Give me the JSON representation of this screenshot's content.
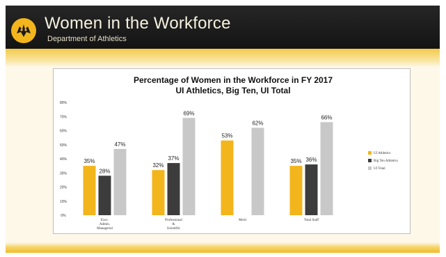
{
  "slide": {
    "title": "Women in the Workforce",
    "subtitle": "Department of Athletics"
  },
  "colors": {
    "header_bg": "#1d1d1d",
    "gold": "#f2b51c",
    "ui_athletics": "#f2b51c",
    "big_ten": "#3c3c3c",
    "ui_total": "#c8c8c8"
  },
  "chart_data": {
    "type": "bar",
    "title": "Percentage of Women in the Workforce in FY 2017",
    "subtitle": "UI Athletics, Big Ten, UI Total",
    "categories": [
      "Exec. Admin. Managerial",
      "Professional & Scientific",
      "Merit",
      "Total Staff"
    ],
    "y_ticks": [
      "0%",
      "10%",
      "20%",
      "30%",
      "40%",
      "50%",
      "60%",
      "70%",
      "80%"
    ],
    "ylim": [
      0,
      80
    ],
    "legend_position": "right",
    "series": [
      {
        "name": "UI Athletics",
        "values": [
          35,
          32,
          53,
          35
        ],
        "labels": [
          "35%",
          "32%",
          "53%",
          "35%"
        ],
        "color": "#f2b51c"
      },
      {
        "name": "Big Ten Athletics",
        "values": [
          28,
          37,
          null,
          36
        ],
        "labels": [
          "28%",
          "37%",
          "",
          "36%"
        ],
        "color": "#3c3c3c"
      },
      {
        "name": "UI Total",
        "values": [
          47,
          69,
          62,
          66
        ],
        "labels": [
          "47%",
          "69%",
          "62%",
          "66%"
        ],
        "color": "#c8c8c8"
      }
    ]
  }
}
